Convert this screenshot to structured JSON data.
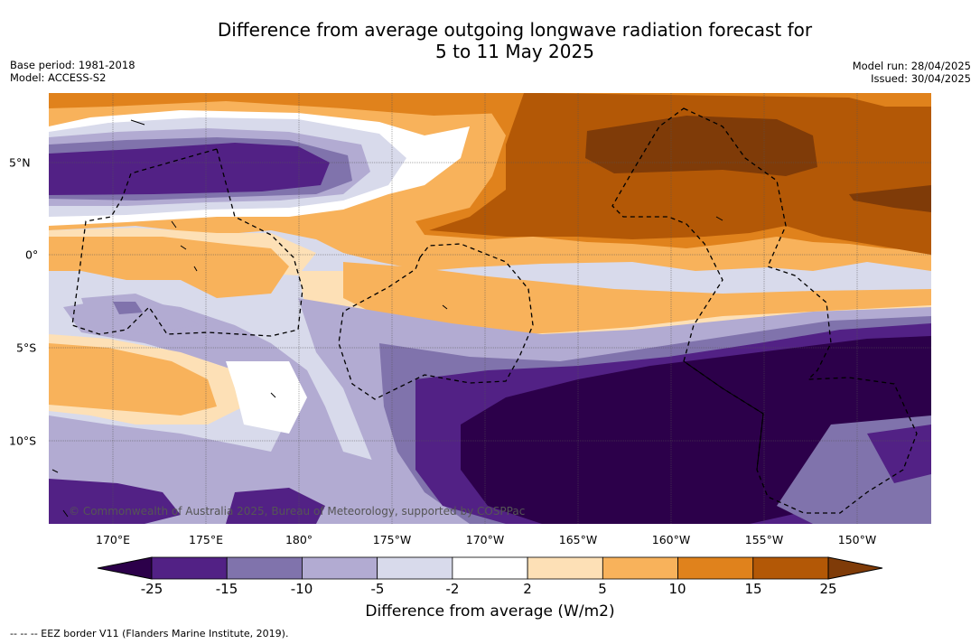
{
  "title": {
    "line1": "Difference from average outgoing longwave radiation forecast for",
    "line2": "5 to 11 May 2025"
  },
  "meta_left": {
    "base_period": "Base period: 1981-2018",
    "model": "Model: ACCESS-S2"
  },
  "meta_right": {
    "model_run": "Model run: 28/04/2025",
    "issued": "Issued: 30/04/2025"
  },
  "map": {
    "lon_labels": [
      "170°E",
      "175°E",
      "180°",
      "175°W",
      "170°W",
      "165°W",
      "160°W",
      "155°W",
      "150°W"
    ],
    "lat_labels": [
      "5°N",
      "0°",
      "5°S",
      "10°S"
    ],
    "copyright": "© Commonwealth of Australia 2025, Bureau of Meteorology, supported by COSPPac"
  },
  "colorbar": {
    "ticks": [
      "-25",
      "-15",
      "-10",
      "-5",
      "-2",
      "2",
      "5",
      "10",
      "15",
      "25"
    ],
    "colors": [
      "#2c004a",
      "#522185",
      "#8073ac",
      "#b2abd2",
      "#d8daeb",
      "#ffffff",
      "#fde0b6",
      "#f8b25b",
      "#e0821c",
      "#b35806",
      "#7f3b08"
    ],
    "label": "Difference from average (W/m2)"
  },
  "footnote": "--  --  -- EEZ border V11 (Flanders Marine Institute, 2019)."
}
